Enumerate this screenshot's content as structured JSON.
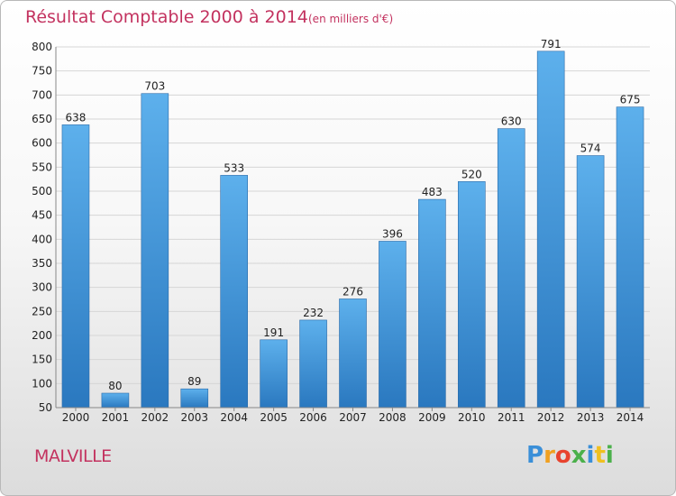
{
  "header": {
    "title": "Résultat Comptable 2000 à 2014",
    "subtitle": "(en milliers d'€)"
  },
  "commune": "MALVILLE",
  "logo": {
    "text": "Proxiti"
  },
  "colors": {
    "bar": "#3d92d8",
    "title": "#c3325f"
  },
  "chart_data": {
    "type": "bar",
    "title": "Résultat Comptable 2000 à 2014",
    "subtitle": "(en milliers d'€)",
    "categories": [
      "2000",
      "2001",
      "2002",
      "2003",
      "2004",
      "2005",
      "2006",
      "2007",
      "2008",
      "2009",
      "2010",
      "2011",
      "2012",
      "2013",
      "2014"
    ],
    "values": [
      638,
      80,
      703,
      89,
      533,
      191,
      232,
      276,
      396,
      483,
      520,
      630,
      791,
      574,
      675
    ],
    "ylim": [
      50,
      800
    ],
    "yticks": [
      50,
      100,
      150,
      200,
      250,
      300,
      350,
      400,
      450,
      500,
      550,
      600,
      650,
      700,
      750,
      800
    ],
    "grid": true,
    "data_labels": true
  }
}
